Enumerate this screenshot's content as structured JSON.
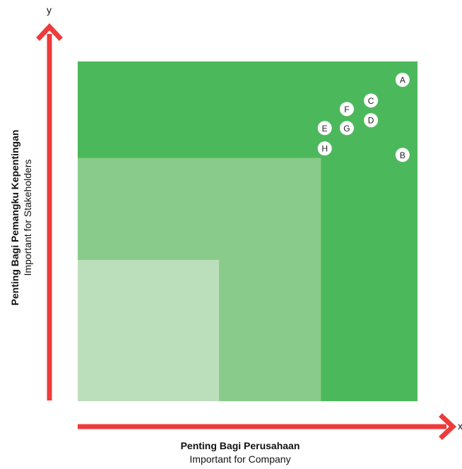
{
  "chart_data": {
    "type": "scatter",
    "title": "",
    "xlabel": "Penting Bagi Perusahaan",
    "xlabel_sub": "Important for Company",
    "ylabel": "Penting Bagi Pemangku Kepentingan",
    "ylabel_sub": "Important for Stakeholders",
    "x_axis_letter": "x",
    "y_axis_letter": "y",
    "xlim": [
      0,
      1
    ],
    "ylim": [
      0,
      1
    ],
    "zones": [
      {
        "level": "high",
        "x_max": 1.0,
        "y_max": 1.0,
        "color": "#4cb85c"
      },
      {
        "level": "medium",
        "x_max": 0.716,
        "y_max": 0.716,
        "color": "#89cb8b"
      },
      {
        "level": "low",
        "x_max": 0.416,
        "y_max": 0.416,
        "color": "#bcdfbb"
      }
    ],
    "points": [
      {
        "label": "A",
        "x": 0.956,
        "y": 0.946
      },
      {
        "label": "B",
        "x": 0.956,
        "y": 0.725
      },
      {
        "label": "C",
        "x": 0.863,
        "y": 0.885
      },
      {
        "label": "D",
        "x": 0.863,
        "y": 0.827
      },
      {
        "label": "F",
        "x": 0.792,
        "y": 0.86
      },
      {
        "label": "G",
        "x": 0.792,
        "y": 0.804
      },
      {
        "label": "E",
        "x": 0.727,
        "y": 0.804
      },
      {
        "label": "H",
        "x": 0.727,
        "y": 0.744
      }
    ],
    "arrow_color": "#ee3b3b",
    "grid": false
  }
}
